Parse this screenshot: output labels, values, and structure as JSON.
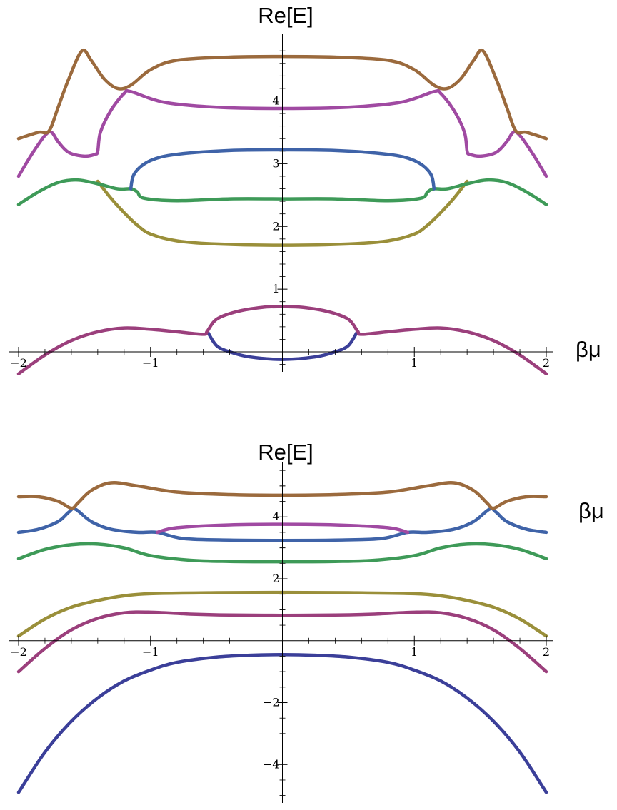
{
  "chart_data": [
    {
      "type": "line",
      "xlabel": "βμ",
      "ylabel": "Re[E]",
      "xlim": [
        -2,
        2
      ],
      "ylim": [
        -0.25,
        4.95
      ],
      "x_ticks": [
        -2,
        -1,
        1,
        2
      ],
      "x_tick_labels": [
        "−2",
        "−1",
        "1",
        "2"
      ],
      "y_ticks": [
        1,
        2,
        3,
        4
      ],
      "y_tick_labels": [
        "1",
        "2",
        "3",
        "4"
      ],
      "grid": false,
      "legend": "none",
      "series": [
        {
          "color": "#3b3f99",
          "points": [
            [
              -0.57,
              0.33
            ],
            [
              -0.5,
              0.1
            ],
            [
              -0.4,
              0.0
            ],
            [
              -0.25,
              -0.08
            ],
            [
              0,
              -0.12
            ],
            [
              0.25,
              -0.08
            ],
            [
              0.4,
              0.0
            ],
            [
              0.5,
              0.1
            ],
            [
              0.57,
              0.33
            ]
          ]
        },
        {
          "color": "#9b3f7c",
          "points": [
            [
              -2,
              -0.35
            ],
            [
              -1.8,
              -0.05
            ],
            [
              -1.6,
              0.18
            ],
            [
              -1.4,
              0.32
            ],
            [
              -1.2,
              0.38
            ],
            [
              -1.0,
              0.36
            ],
            [
              -0.8,
              0.32
            ],
            [
              -0.6,
              0.28
            ],
            [
              -0.57,
              0.33
            ],
            [
              -0.5,
              0.52
            ],
            [
              -0.35,
              0.64
            ],
            [
              -0.15,
              0.71
            ],
            [
              0,
              0.72
            ],
            [
              0.15,
              0.71
            ],
            [
              0.35,
              0.64
            ],
            [
              0.5,
              0.52
            ],
            [
              0.57,
              0.33
            ],
            [
              0.6,
              0.28
            ],
            [
              0.8,
              0.32
            ],
            [
              1.0,
              0.36
            ],
            [
              1.2,
              0.38
            ],
            [
              1.4,
              0.32
            ],
            [
              1.6,
              0.18
            ],
            [
              1.8,
              -0.05
            ],
            [
              2,
              -0.35
            ]
          ]
        },
        {
          "color": "#9a8f3a",
          "points": [
            [
              -1.4,
              2.72
            ],
            [
              -1.3,
              2.45
            ],
            [
              -1.2,
              2.22
            ],
            [
              -1.1,
              2.02
            ],
            [
              -1.0,
              1.88
            ],
            [
              -0.8,
              1.77
            ],
            [
              -0.5,
              1.72
            ],
            [
              0,
              1.7
            ],
            [
              0.5,
              1.72
            ],
            [
              0.8,
              1.77
            ],
            [
              1.0,
              1.88
            ],
            [
              1.1,
              2.02
            ],
            [
              1.2,
              2.22
            ],
            [
              1.3,
              2.45
            ],
            [
              1.4,
              2.72
            ]
          ]
        },
        {
          "color": "#3e9a58",
          "points": [
            [
              -2,
              2.35
            ],
            [
              -1.85,
              2.55
            ],
            [
              -1.7,
              2.7
            ],
            [
              -1.55,
              2.74
            ],
            [
              -1.4,
              2.68
            ],
            [
              -1.25,
              2.6
            ],
            [
              -1.15,
              2.6
            ],
            [
              -1.1,
              2.55
            ],
            [
              -1.05,
              2.45
            ],
            [
              -0.8,
              2.41
            ],
            [
              -0.4,
              2.44
            ],
            [
              0,
              2.44
            ],
            [
              0.4,
              2.44
            ],
            [
              0.8,
              2.41
            ],
            [
              1.05,
              2.45
            ],
            [
              1.1,
              2.55
            ],
            [
              1.15,
              2.6
            ],
            [
              1.25,
              2.6
            ],
            [
              1.4,
              2.68
            ],
            [
              1.55,
              2.74
            ],
            [
              1.7,
              2.7
            ],
            [
              1.85,
              2.55
            ],
            [
              2,
              2.35
            ]
          ]
        },
        {
          "color": "#3f63a8",
          "points": [
            [
              -1.15,
              2.6
            ],
            [
              -1.12,
              2.85
            ],
            [
              -1.0,
              3.05
            ],
            [
              -0.8,
              3.15
            ],
            [
              -0.4,
              3.21
            ],
            [
              0,
              3.22
            ],
            [
              0.4,
              3.21
            ],
            [
              0.8,
              3.15
            ],
            [
              1.0,
              3.05
            ],
            [
              1.12,
              2.85
            ],
            [
              1.15,
              2.6
            ]
          ]
        },
        {
          "color": "#a04aa2",
          "points": [
            [
              -2,
              2.8
            ],
            [
              -1.9,
              3.15
            ],
            [
              -1.8,
              3.45
            ],
            [
              -1.75,
              3.5
            ],
            [
              -1.7,
              3.35
            ],
            [
              -1.62,
              3.18
            ],
            [
              -1.5,
              3.12
            ],
            [
              -1.42,
              3.15
            ],
            [
              -1.4,
              3.2
            ],
            [
              -1.38,
              3.5
            ],
            [
              -1.3,
              3.85
            ],
            [
              -1.2,
              4.12
            ],
            [
              -1.15,
              4.15
            ],
            [
              -0.9,
              3.98
            ],
            [
              -0.5,
              3.9
            ],
            [
              0,
              3.88
            ],
            [
              0.5,
              3.9
            ],
            [
              0.9,
              3.98
            ],
            [
              1.15,
              4.15
            ],
            [
              1.2,
              4.12
            ],
            [
              1.3,
              3.85
            ],
            [
              1.38,
              3.5
            ],
            [
              1.4,
              3.2
            ],
            [
              1.42,
              3.15
            ],
            [
              1.5,
              3.12
            ],
            [
              1.62,
              3.18
            ],
            [
              1.7,
              3.35
            ],
            [
              1.75,
              3.5
            ],
            [
              1.8,
              3.45
            ],
            [
              1.9,
              3.15
            ],
            [
              2,
              2.8
            ]
          ]
        },
        {
          "color": "#9b6a3d",
          "points": [
            [
              -2,
              3.4
            ],
            [
              -1.85,
              3.5
            ],
            [
              -1.77,
              3.52
            ],
            [
              -1.7,
              3.9
            ],
            [
              -1.62,
              4.35
            ],
            [
              -1.52,
              4.8
            ],
            [
              -1.45,
              4.65
            ],
            [
              -1.35,
              4.35
            ],
            [
              -1.25,
              4.2
            ],
            [
              -1.15,
              4.25
            ],
            [
              -1.0,
              4.5
            ],
            [
              -0.8,
              4.65
            ],
            [
              -0.4,
              4.7
            ],
            [
              0,
              4.71
            ],
            [
              0.4,
              4.7
            ],
            [
              0.8,
              4.65
            ],
            [
              1.0,
              4.5
            ],
            [
              1.15,
              4.25
            ],
            [
              1.25,
              4.2
            ],
            [
              1.35,
              4.35
            ],
            [
              1.45,
              4.65
            ],
            [
              1.52,
              4.8
            ],
            [
              1.62,
              4.35
            ],
            [
              1.7,
              3.9
            ],
            [
              1.77,
              3.52
            ],
            [
              1.85,
              3.5
            ],
            [
              2,
              3.4
            ]
          ]
        }
      ]
    },
    {
      "type": "line",
      "xlabel": "βμ",
      "ylabel": "Re[E]",
      "xlim": [
        -2,
        2
      ],
      "ylim": [
        -5.1,
        5.55
      ],
      "x_ticks": [
        -2,
        -1,
        1,
        2
      ],
      "x_tick_labels": [
        "−2",
        "−1",
        "1",
        "2"
      ],
      "y_ticks": [
        -4,
        -2,
        2,
        4
      ],
      "y_tick_labels": [
        "−4",
        "−2",
        "2",
        "4"
      ],
      "grid": false,
      "legend": "none",
      "series": [
        {
          "color": "#3b3f99",
          "points": [
            [
              -2,
              -4.9
            ],
            [
              -1.8,
              -3.6
            ],
            [
              -1.6,
              -2.6
            ],
            [
              -1.4,
              -1.85
            ],
            [
              -1.2,
              -1.3
            ],
            [
              -1.0,
              -0.95
            ],
            [
              -0.8,
              -0.7
            ],
            [
              -0.5,
              -0.53
            ],
            [
              -0.25,
              -0.47
            ],
            [
              0,
              -0.45
            ],
            [
              0.25,
              -0.47
            ],
            [
              0.5,
              -0.53
            ],
            [
              0.8,
              -0.7
            ],
            [
              1.0,
              -0.95
            ],
            [
              1.2,
              -1.3
            ],
            [
              1.4,
              -1.85
            ],
            [
              1.6,
              -2.6
            ],
            [
              1.8,
              -3.6
            ],
            [
              2,
              -4.9
            ]
          ]
        },
        {
          "color": "#9b3f7c",
          "points": [
            [
              -2,
              -1.0
            ],
            [
              -1.8,
              -0.25
            ],
            [
              -1.6,
              0.35
            ],
            [
              -1.4,
              0.72
            ],
            [
              -1.2,
              0.9
            ],
            [
              -1.0,
              0.92
            ],
            [
              -0.7,
              0.86
            ],
            [
              -0.4,
              0.83
            ],
            [
              0,
              0.82
            ],
            [
              0.4,
              0.83
            ],
            [
              0.7,
              0.86
            ],
            [
              1.0,
              0.92
            ],
            [
              1.2,
              0.9
            ],
            [
              1.4,
              0.72
            ],
            [
              1.6,
              0.35
            ],
            [
              1.8,
              -0.25
            ],
            [
              2,
              -1.0
            ]
          ]
        },
        {
          "color": "#9a8f3a",
          "points": [
            [
              -2,
              0.15
            ],
            [
              -1.8,
              0.7
            ],
            [
              -1.6,
              1.08
            ],
            [
              -1.4,
              1.3
            ],
            [
              -1.2,
              1.45
            ],
            [
              -1.0,
              1.52
            ],
            [
              -0.5,
              1.55
            ],
            [
              0,
              1.56
            ],
            [
              0.5,
              1.55
            ],
            [
              1.0,
              1.52
            ],
            [
              1.2,
              1.45
            ],
            [
              1.4,
              1.3
            ],
            [
              1.6,
              1.08
            ],
            [
              1.8,
              0.7
            ],
            [
              2,
              0.15
            ]
          ]
        },
        {
          "color": "#3e9a58",
          "points": [
            [
              -2,
              2.65
            ],
            [
              -1.8,
              2.95
            ],
            [
              -1.6,
              3.1
            ],
            [
              -1.4,
              3.12
            ],
            [
              -1.2,
              3.0
            ],
            [
              -1.0,
              2.75
            ],
            [
              -0.7,
              2.6
            ],
            [
              -0.4,
              2.56
            ],
            [
              0,
              2.55
            ],
            [
              0.4,
              2.56
            ],
            [
              0.7,
              2.6
            ],
            [
              1.0,
              2.75
            ],
            [
              1.2,
              3.0
            ],
            [
              1.4,
              3.12
            ],
            [
              1.6,
              3.1
            ],
            [
              1.8,
              2.95
            ],
            [
              2,
              2.65
            ]
          ]
        },
        {
          "color": "#3f63a8",
          "points": [
            [
              -2,
              3.5
            ],
            [
              -1.85,
              3.6
            ],
            [
              -1.7,
              3.85
            ],
            [
              -1.62,
              4.15
            ],
            [
              -1.57,
              4.25
            ],
            [
              -1.45,
              3.85
            ],
            [
              -1.3,
              3.6
            ],
            [
              -1.1,
              3.5
            ],
            [
              -0.95,
              3.5
            ],
            [
              -0.75,
              3.3
            ],
            [
              -0.4,
              3.25
            ],
            [
              0,
              3.24
            ],
            [
              0.4,
              3.25
            ],
            [
              0.75,
              3.3
            ],
            [
              0.95,
              3.5
            ],
            [
              1.1,
              3.5
            ],
            [
              1.3,
              3.6
            ],
            [
              1.45,
              3.85
            ],
            [
              1.57,
              4.25
            ],
            [
              1.62,
              4.15
            ],
            [
              1.7,
              3.85
            ],
            [
              1.85,
              3.6
            ],
            [
              2,
              3.5
            ]
          ]
        },
        {
          "color": "#a04aa2",
          "points": [
            [
              -0.95,
              3.5
            ],
            [
              -0.8,
              3.65
            ],
            [
              -0.4,
              3.74
            ],
            [
              0,
              3.76
            ],
            [
              0.4,
              3.74
            ],
            [
              0.8,
              3.65
            ],
            [
              0.95,
              3.5
            ]
          ]
        },
        {
          "color": "#9b6a3d",
          "points": [
            [
              -2,
              4.65
            ],
            [
              -1.85,
              4.65
            ],
            [
              -1.7,
              4.5
            ],
            [
              -1.6,
              4.28
            ],
            [
              -1.55,
              4.45
            ],
            [
              -1.45,
              4.85
            ],
            [
              -1.3,
              5.1
            ],
            [
              -1.1,
              5.0
            ],
            [
              -0.8,
              4.8
            ],
            [
              -0.4,
              4.72
            ],
            [
              0,
              4.7
            ],
            [
              0.4,
              4.72
            ],
            [
              0.8,
              4.8
            ],
            [
              1.1,
              5.0
            ],
            [
              1.3,
              5.1
            ],
            [
              1.45,
              4.85
            ],
            [
              1.55,
              4.45
            ],
            [
              1.6,
              4.28
            ],
            [
              1.7,
              4.5
            ],
            [
              1.85,
              4.65
            ],
            [
              2,
              4.65
            ]
          ]
        }
      ]
    }
  ]
}
